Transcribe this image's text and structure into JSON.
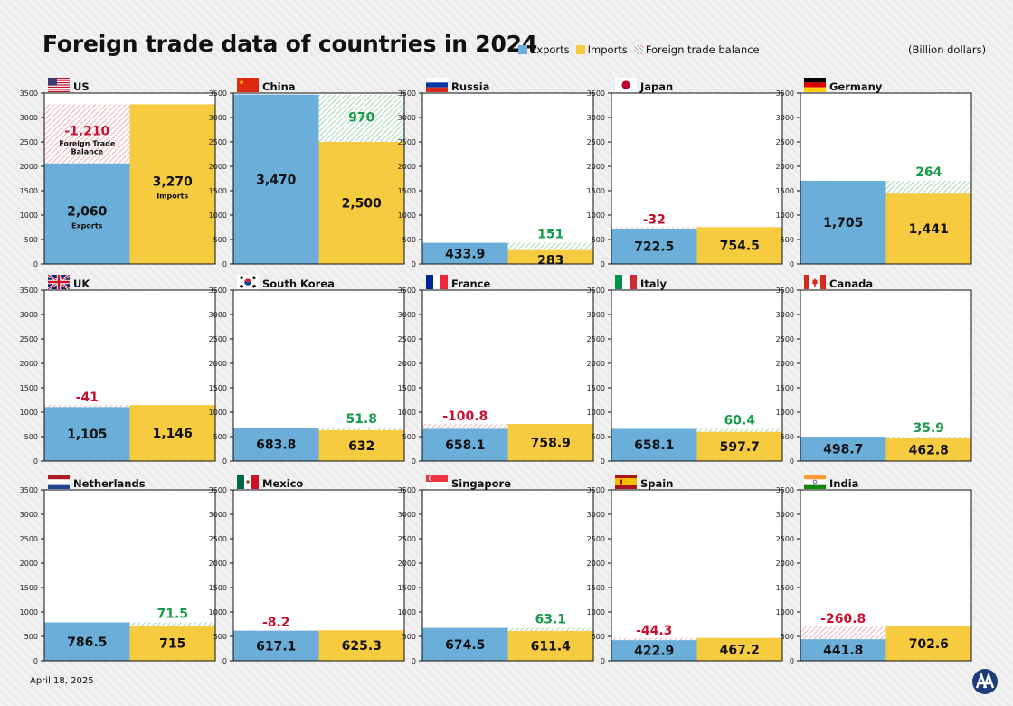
{
  "title": "Foreign trade data of countries in 2024",
  "legend": {
    "exports": "Exports",
    "imports": "Imports",
    "balance": "Foreign trade balance"
  },
  "units": "(Billion dollars)",
  "date": "April 18, 2025",
  "logo": {
    "icon": "aa-logo-icon",
    "text": "AA"
  },
  "colors": {
    "exports": "#6aaed9",
    "imports": "#f6cb3f",
    "surplus": "#1a9a4b",
    "deficit": "#c8102e"
  },
  "chart_data": {
    "type": "bar",
    "layout": "small-multiples",
    "ylim": [
      0,
      3500
    ],
    "yticks": [
      "3500",
      "3000",
      "2500",
      "2000",
      "1500",
      "1000",
      "500",
      "0"
    ],
    "series_names": [
      "Exports",
      "Imports",
      "Foreign trade balance"
    ],
    "countries": [
      {
        "name": "US",
        "flag": "us-flag-icon",
        "exports": 2060,
        "imports": 3270,
        "balance": -1210,
        "exports_label": "2,060",
        "imports_label": "3,270",
        "balance_label": "-1,210",
        "exports_text": "Exports",
        "imports_text": "Imports",
        "balance_text": "Foreign Trade Balance"
      },
      {
        "name": "China",
        "flag": "china-flag-icon",
        "exports": 3470,
        "imports": 2500,
        "balance": 970,
        "exports_label": "3,470",
        "imports_label": "2,500",
        "balance_label": "970"
      },
      {
        "name": "Russia",
        "flag": "russia-flag-icon",
        "exports": 433.9,
        "imports": 283,
        "balance": 151,
        "exports_label": "433.9",
        "imports_label": "283",
        "balance_label": "151"
      },
      {
        "name": "Japan",
        "flag": "japan-flag-icon",
        "exports": 722.5,
        "imports": 754.5,
        "balance": -32,
        "exports_label": "722.5",
        "imports_label": "754.5",
        "balance_label": "-32"
      },
      {
        "name": "Germany",
        "flag": "germany-flag-icon",
        "exports": 1705,
        "imports": 1441,
        "balance": 264,
        "exports_label": "1,705",
        "imports_label": "1,441",
        "balance_label": "264"
      },
      {
        "name": "UK",
        "flag": "uk-flag-icon",
        "exports": 1105,
        "imports": 1146,
        "balance": -41,
        "exports_label": "1,105",
        "imports_label": "1,146",
        "balance_label": "-41"
      },
      {
        "name": "South Korea",
        "flag": "south-korea-flag-icon",
        "exports": 683.8,
        "imports": 632,
        "balance": 51.8,
        "exports_label": "683.8",
        "imports_label": "632",
        "balance_label": "51.8"
      },
      {
        "name": "France",
        "flag": "france-flag-icon",
        "exports": 658.1,
        "imports": 758.9,
        "balance": -100.8,
        "exports_label": "658.1",
        "imports_label": "758.9",
        "balance_label": "-100.8"
      },
      {
        "name": "Italy",
        "flag": "italy-flag-icon",
        "exports": 658.1,
        "imports": 597.7,
        "balance": 60.4,
        "exports_label": "658.1",
        "imports_label": "597.7",
        "balance_label": "60.4"
      },
      {
        "name": "Canada",
        "flag": "canada-flag-icon",
        "exports": 498.7,
        "imports": 462.8,
        "balance": 35.9,
        "exports_label": "498.7",
        "imports_label": "462.8",
        "balance_label": "35.9"
      },
      {
        "name": "Netherlands",
        "flag": "netherlands-flag-icon",
        "exports": 786.5,
        "imports": 715,
        "balance": 71.5,
        "exports_label": "786.5",
        "imports_label": "715",
        "balance_label": "71.5"
      },
      {
        "name": "Mexico",
        "flag": "mexico-flag-icon",
        "exports": 617.1,
        "imports": 625.3,
        "balance": -8.2,
        "exports_label": "617.1",
        "imports_label": "625.3",
        "balance_label": "-8.2"
      },
      {
        "name": "Singapore",
        "flag": "singapore-flag-icon",
        "exports": 674.5,
        "imports": 611.4,
        "balance": 63.1,
        "exports_label": "674.5",
        "imports_label": "611.4",
        "balance_label": "63.1"
      },
      {
        "name": "Spain",
        "flag": "spain-flag-icon",
        "exports": 422.9,
        "imports": 467.2,
        "balance": -44.3,
        "exports_label": "422.9",
        "imports_label": "467.2",
        "balance_label": "-44.3"
      },
      {
        "name": "India",
        "flag": "india-flag-icon",
        "exports": 441.8,
        "imports": 702.6,
        "balance": -260.8,
        "exports_label": "441.8",
        "imports_label": "702.6",
        "balance_label": "-260.8"
      }
    ]
  }
}
